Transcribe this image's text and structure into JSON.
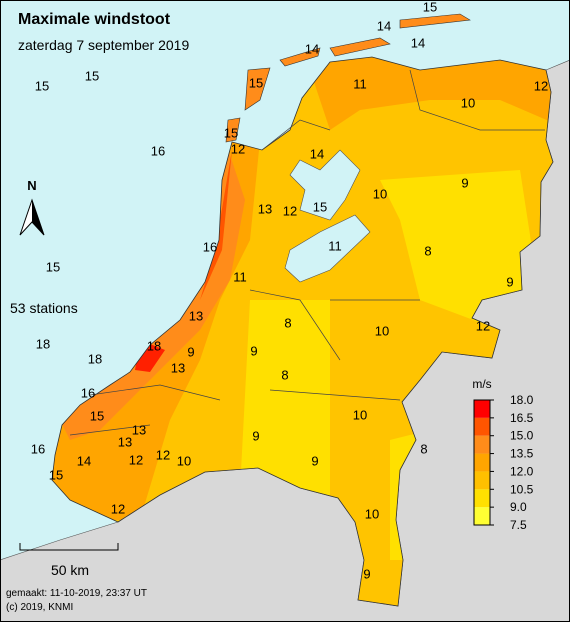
{
  "title": "Maximale windstoot",
  "subtitle": "zaterdag 7 september 2019",
  "station_count": "53 stations",
  "north": "N",
  "scale": "50 km",
  "made": "gemaakt: 11-10-2019, 23:37 UT",
  "copyright": "(c) 2019, KNMI",
  "legend": {
    "unit": "m/s",
    "ticks": [
      {
        "value": 18,
        "label": "18.0"
      },
      16.5,
      {
        "value": 15,
        "label": "15.0"
      },
      13.5,
      {
        "value": 12,
        "label": "12.0"
      },
      10.5,
      {
        "value": 9,
        "label": "9.0"
      },
      7.5
    ],
    "colors": [
      "#ff0000",
      "#ff5500",
      "#ff8c1a",
      "#ffa500",
      "#ffc000",
      "#ffe000",
      "#ffff33"
    ]
  },
  "stations": [
    15,
    14,
    14,
    14,
    15,
    15,
    15,
    11,
    12,
    10,
    16,
    15,
    12,
    14,
    10,
    9,
    13,
    12,
    15,
    16,
    11,
    8,
    15,
    11,
    9,
    13,
    8,
    10,
    12,
    18,
    18,
    18,
    9,
    9,
    13,
    8,
    16,
    15,
    10,
    13,
    13,
    16,
    12,
    9,
    8,
    15,
    14,
    12,
    10,
    9,
    12,
    10,
    9
  ]
}
